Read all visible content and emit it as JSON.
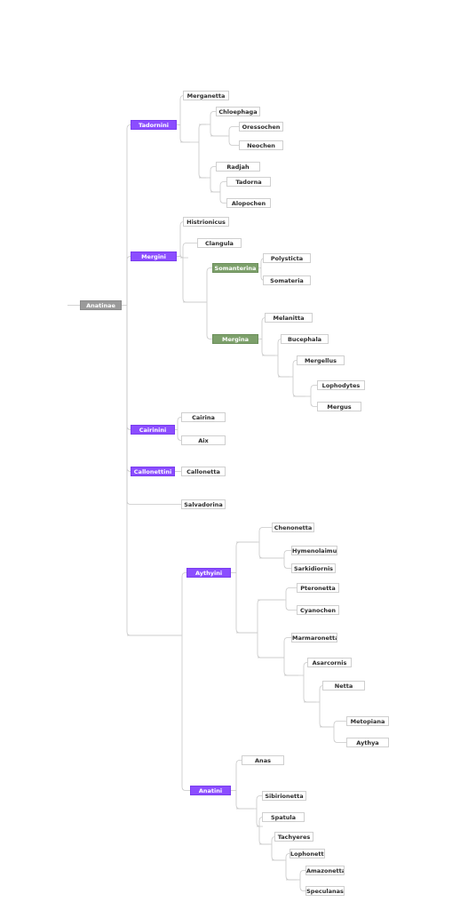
{
  "tree": {
    "root": "Anatinae",
    "tribes": {
      "tadornini": "Tadornini",
      "mergini": "Mergini",
      "cairinini": "Cairinini",
      "callonettini": "Callonettini",
      "aythyini": "Aythyini",
      "anatini": "Anatini"
    },
    "subtribes": {
      "somanterina": "Somanterina",
      "mergina": "Mergina"
    },
    "genera": {
      "merganetta": "Merganetta",
      "chloephaga": "Chloephaga",
      "oressochen": "Oressochen",
      "neochen": "Neochen",
      "radjah": "Radjah",
      "tadorna": "Tadorna",
      "alopochen": "Alopochen",
      "histrionicus": "Histrionicus",
      "clangula": "Clangula",
      "polysticta": "Polysticta",
      "somateria": "Somateria",
      "melanitta": "Melanitta",
      "bucephala": "Bucephala",
      "mergellus": "Mergellus",
      "lophodytes": "Lophodytes",
      "mergus": "Mergus",
      "cairina": "Cairina",
      "aix": "Aix",
      "callonetta": "Callonetta",
      "salvadorina": "Salvadorina",
      "chenonetta": "Chenonetta",
      "hymenolaimus": "Hymenolaimus",
      "sarkidiornis": "Sarkidiornis",
      "pteronetta": "Pteronetta",
      "cyanochen": "Cyanochen",
      "marmaronetta": "Marmaronetta",
      "asarcornis": "Asarcornis",
      "netta": "Netta",
      "metopiana": "Metopiana",
      "aythya": "Aythya",
      "anas": "Anas",
      "sibirionetta": "Sibirionetta",
      "spatula": "Spatula",
      "tachyeres": "Tachyeres",
      "lophonetta": "Lophonetta",
      "amazonetta": "Amazonetta",
      "speculanas": "Speculanas"
    },
    "colors": {
      "tribe": "#8b4dff",
      "subtribe": "#7da06b",
      "root": "#9a9a9a",
      "leaf_border": "#cfcfcf",
      "connector": "#c8c8c8"
    }
  }
}
